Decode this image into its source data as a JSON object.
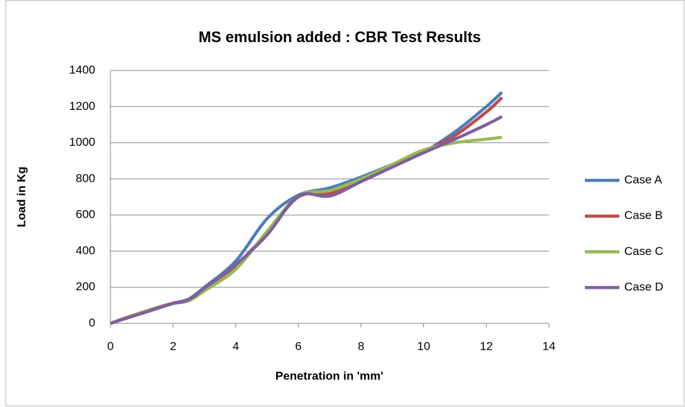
{
  "chart_data": {
    "type": "line",
    "title": "MS emulsion added  : CBR Test Results",
    "x_label": "Penetration in 'mm'",
    "y_label": "Load in Kg",
    "x": [
      0,
      0.5,
      1,
      1.5,
      2,
      2.5,
      3,
      4,
      5,
      6,
      7,
      8,
      9,
      10,
      11,
      12,
      12.5
    ],
    "series": [
      {
        "name": "Case A",
        "color": "#4a7ebb",
        "values": [
          0,
          30,
          58,
          85,
          112,
          135,
          200,
          345,
          580,
          710,
          750,
          810,
          880,
          950,
          1060,
          1200,
          1280
        ]
      },
      {
        "name": "Case B",
        "color": "#be4b48",
        "values": [
          0,
          32,
          60,
          88,
          112,
          130,
          195,
          320,
          500,
          700,
          720,
          790,
          870,
          950,
          1040,
          1170,
          1250
        ]
      },
      {
        "name": "Case C",
        "color": "#98b954",
        "values": [
          0,
          30,
          58,
          85,
          110,
          125,
          180,
          300,
          510,
          705,
          735,
          800,
          880,
          960,
          1000,
          1020,
          1030
        ]
      },
      {
        "name": "Case D",
        "color": "#7d60a0",
        "values": [
          0,
          28,
          55,
          83,
          110,
          132,
          195,
          325,
          490,
          705,
          705,
          785,
          865,
          945,
          1020,
          1100,
          1145
        ]
      }
    ],
    "xlim": [
      0,
      14
    ],
    "xticks": [
      0,
      2,
      4,
      6,
      8,
      10,
      12,
      14
    ],
    "ylim": [
      0,
      1400
    ],
    "yticks": [
      0,
      200,
      400,
      600,
      800,
      1000,
      1200,
      1400
    ],
    "grid": true,
    "legend": "right"
  }
}
